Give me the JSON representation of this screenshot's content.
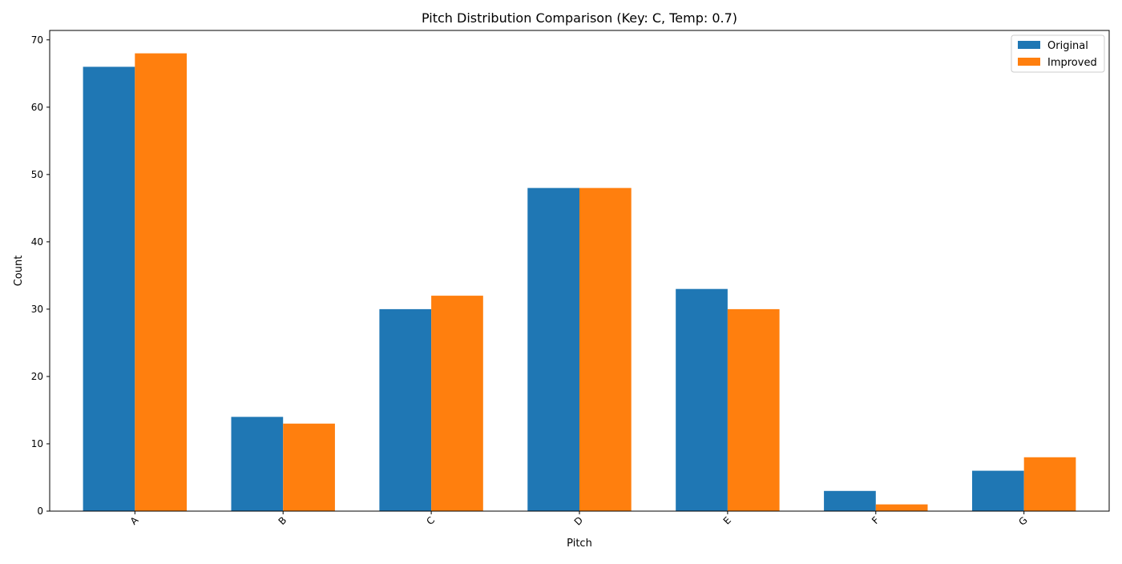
{
  "chart_data": {
    "type": "bar",
    "title": "Pitch Distribution Comparison (Key: C, Temp: 0.7)",
    "xlabel": "Pitch",
    "ylabel": "Count",
    "categories": [
      "A",
      "B",
      "C",
      "D",
      "E",
      "F",
      "G"
    ],
    "series": [
      {
        "name": "Original",
        "color": "#1f77b4",
        "values": [
          66,
          14,
          30,
          48,
          33,
          3,
          6
        ]
      },
      {
        "name": "Improved",
        "color": "#ff7f0e",
        "values": [
          68,
          13,
          32,
          48,
          30,
          1,
          8
        ]
      }
    ],
    "ylim": [
      0,
      71.4
    ],
    "yticks": [
      0,
      10,
      20,
      30,
      40,
      50,
      60,
      70
    ],
    "grid": false,
    "legend_position": "top-right",
    "xtick_rotation_deg": 45
  }
}
